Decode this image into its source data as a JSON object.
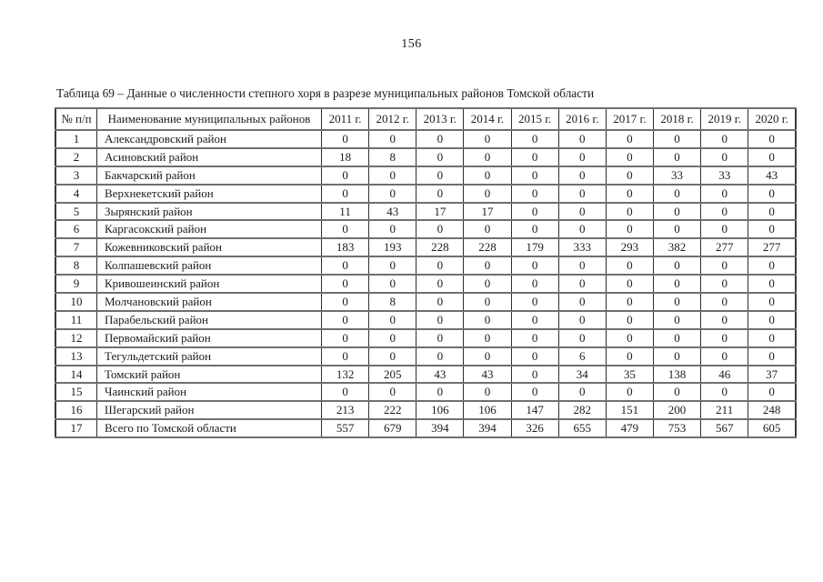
{
  "page": {
    "number": "156",
    "caption": "Таблица 69 – Данные о численности степного хоря в разрезе муниципальных районов Томской области"
  },
  "table": {
    "headers": [
      "№ п/п",
      "Наименование муниципальных районов",
      "2011 г.",
      "2012 г.",
      "2013 г.",
      "2014 г.",
      "2015 г.",
      "2016 г.",
      "2017 г.",
      "2018 г.",
      "2019 г.",
      "2020 г."
    ],
    "rows": [
      {
        "num": "1",
        "name": "Александровский район",
        "values": [
          "0",
          "0",
          "0",
          "0",
          "0",
          "0",
          "0",
          "0",
          "0",
          "0"
        ]
      },
      {
        "num": "2",
        "name": "Асиновский район",
        "values": [
          "18",
          "8",
          "0",
          "0",
          "0",
          "0",
          "0",
          "0",
          "0",
          "0"
        ]
      },
      {
        "num": "3",
        "name": "Бакчарский район",
        "values": [
          "0",
          "0",
          "0",
          "0",
          "0",
          "0",
          "0",
          "33",
          "33",
          "43"
        ]
      },
      {
        "num": "4",
        "name": "Верхнекетский район",
        "values": [
          "0",
          "0",
          "0",
          "0",
          "0",
          "0",
          "0",
          "0",
          "0",
          "0"
        ]
      },
      {
        "num": "5",
        "name": "Зырянский район",
        "values": [
          "11",
          "43",
          "17",
          "17",
          "0",
          "0",
          "0",
          "0",
          "0",
          "0"
        ]
      },
      {
        "num": "6",
        "name": "Каргасокский район",
        "values": [
          "0",
          "0",
          "0",
          "0",
          "0",
          "0",
          "0",
          "0",
          "0",
          "0"
        ]
      },
      {
        "num": "7",
        "name": "Кожевниковский район",
        "values": [
          "183",
          "193",
          "228",
          "228",
          "179",
          "333",
          "293",
          "382",
          "277",
          "277"
        ]
      },
      {
        "num": "8",
        "name": "Колпашевский район",
        "values": [
          "0",
          "0",
          "0",
          "0",
          "0",
          "0",
          "0",
          "0",
          "0",
          "0"
        ]
      },
      {
        "num": "9",
        "name": "Кривошеинский район",
        "values": [
          "0",
          "0",
          "0",
          "0",
          "0",
          "0",
          "0",
          "0",
          "0",
          "0"
        ]
      },
      {
        "num": "10",
        "name": "Молчановский район",
        "values": [
          "0",
          "8",
          "0",
          "0",
          "0",
          "0",
          "0",
          "0",
          "0",
          "0"
        ]
      },
      {
        "num": "11",
        "name": "Парабельский район",
        "values": [
          "0",
          "0",
          "0",
          "0",
          "0",
          "0",
          "0",
          "0",
          "0",
          "0"
        ]
      },
      {
        "num": "12",
        "name": "Первомайский район",
        "values": [
          "0",
          "0",
          "0",
          "0",
          "0",
          "0",
          "0",
          "0",
          "0",
          "0"
        ]
      },
      {
        "num": "13",
        "name": "Тегульдетский район",
        "values": [
          "0",
          "0",
          "0",
          "0",
          "0",
          "6",
          "0",
          "0",
          "0",
          "0"
        ]
      },
      {
        "num": "14",
        "name": "Томский район",
        "values": [
          "132",
          "205",
          "43",
          "43",
          "0",
          "34",
          "35",
          "138",
          "46",
          "37"
        ]
      },
      {
        "num": "15",
        "name": "Чаинский район",
        "values": [
          "0",
          "0",
          "0",
          "0",
          "0",
          "0",
          "0",
          "0",
          "0",
          "0"
        ]
      },
      {
        "num": "16",
        "name": "Шегарский район",
        "values": [
          "213",
          "222",
          "106",
          "106",
          "147",
          "282",
          "151",
          "200",
          "211",
          "248"
        ]
      },
      {
        "num": "17",
        "name": "Всего по Томской области",
        "values": [
          "557",
          "679",
          "394",
          "394",
          "326",
          "655",
          "479",
          "753",
          "567",
          "605"
        ]
      }
    ]
  }
}
